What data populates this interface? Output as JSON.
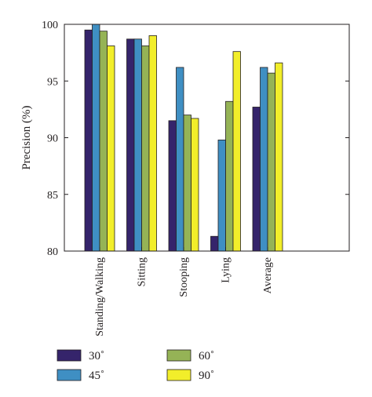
{
  "chart_data": {
    "type": "bar",
    "categories": [
      "Standing/Walking",
      "Sitting",
      "Stooping",
      "Lying",
      "Average"
    ],
    "series": [
      {
        "name": "30˚",
        "color": "#35246b",
        "values": [
          99.5,
          98.7,
          91.5,
          81.3,
          92.7
        ]
      },
      {
        "name": "45˚",
        "color": "#3f8fc3",
        "values": [
          100.0,
          98.7,
          96.2,
          89.8,
          96.2
        ]
      },
      {
        "name": "60˚",
        "color": "#95b356",
        "values": [
          99.4,
          98.1,
          92.0,
          93.2,
          95.7
        ]
      },
      {
        "name": "90˚",
        "color": "#f2ee2a",
        "values": [
          98.1,
          99.0,
          91.7,
          97.6,
          96.6
        ]
      }
    ],
    "ylabel": "Precision (%)",
    "xlabel": "",
    "ylim": [
      80,
      100
    ],
    "yticks": [
      80,
      85,
      90,
      95,
      100
    ],
    "grid": false,
    "legend_position": "bottom"
  }
}
